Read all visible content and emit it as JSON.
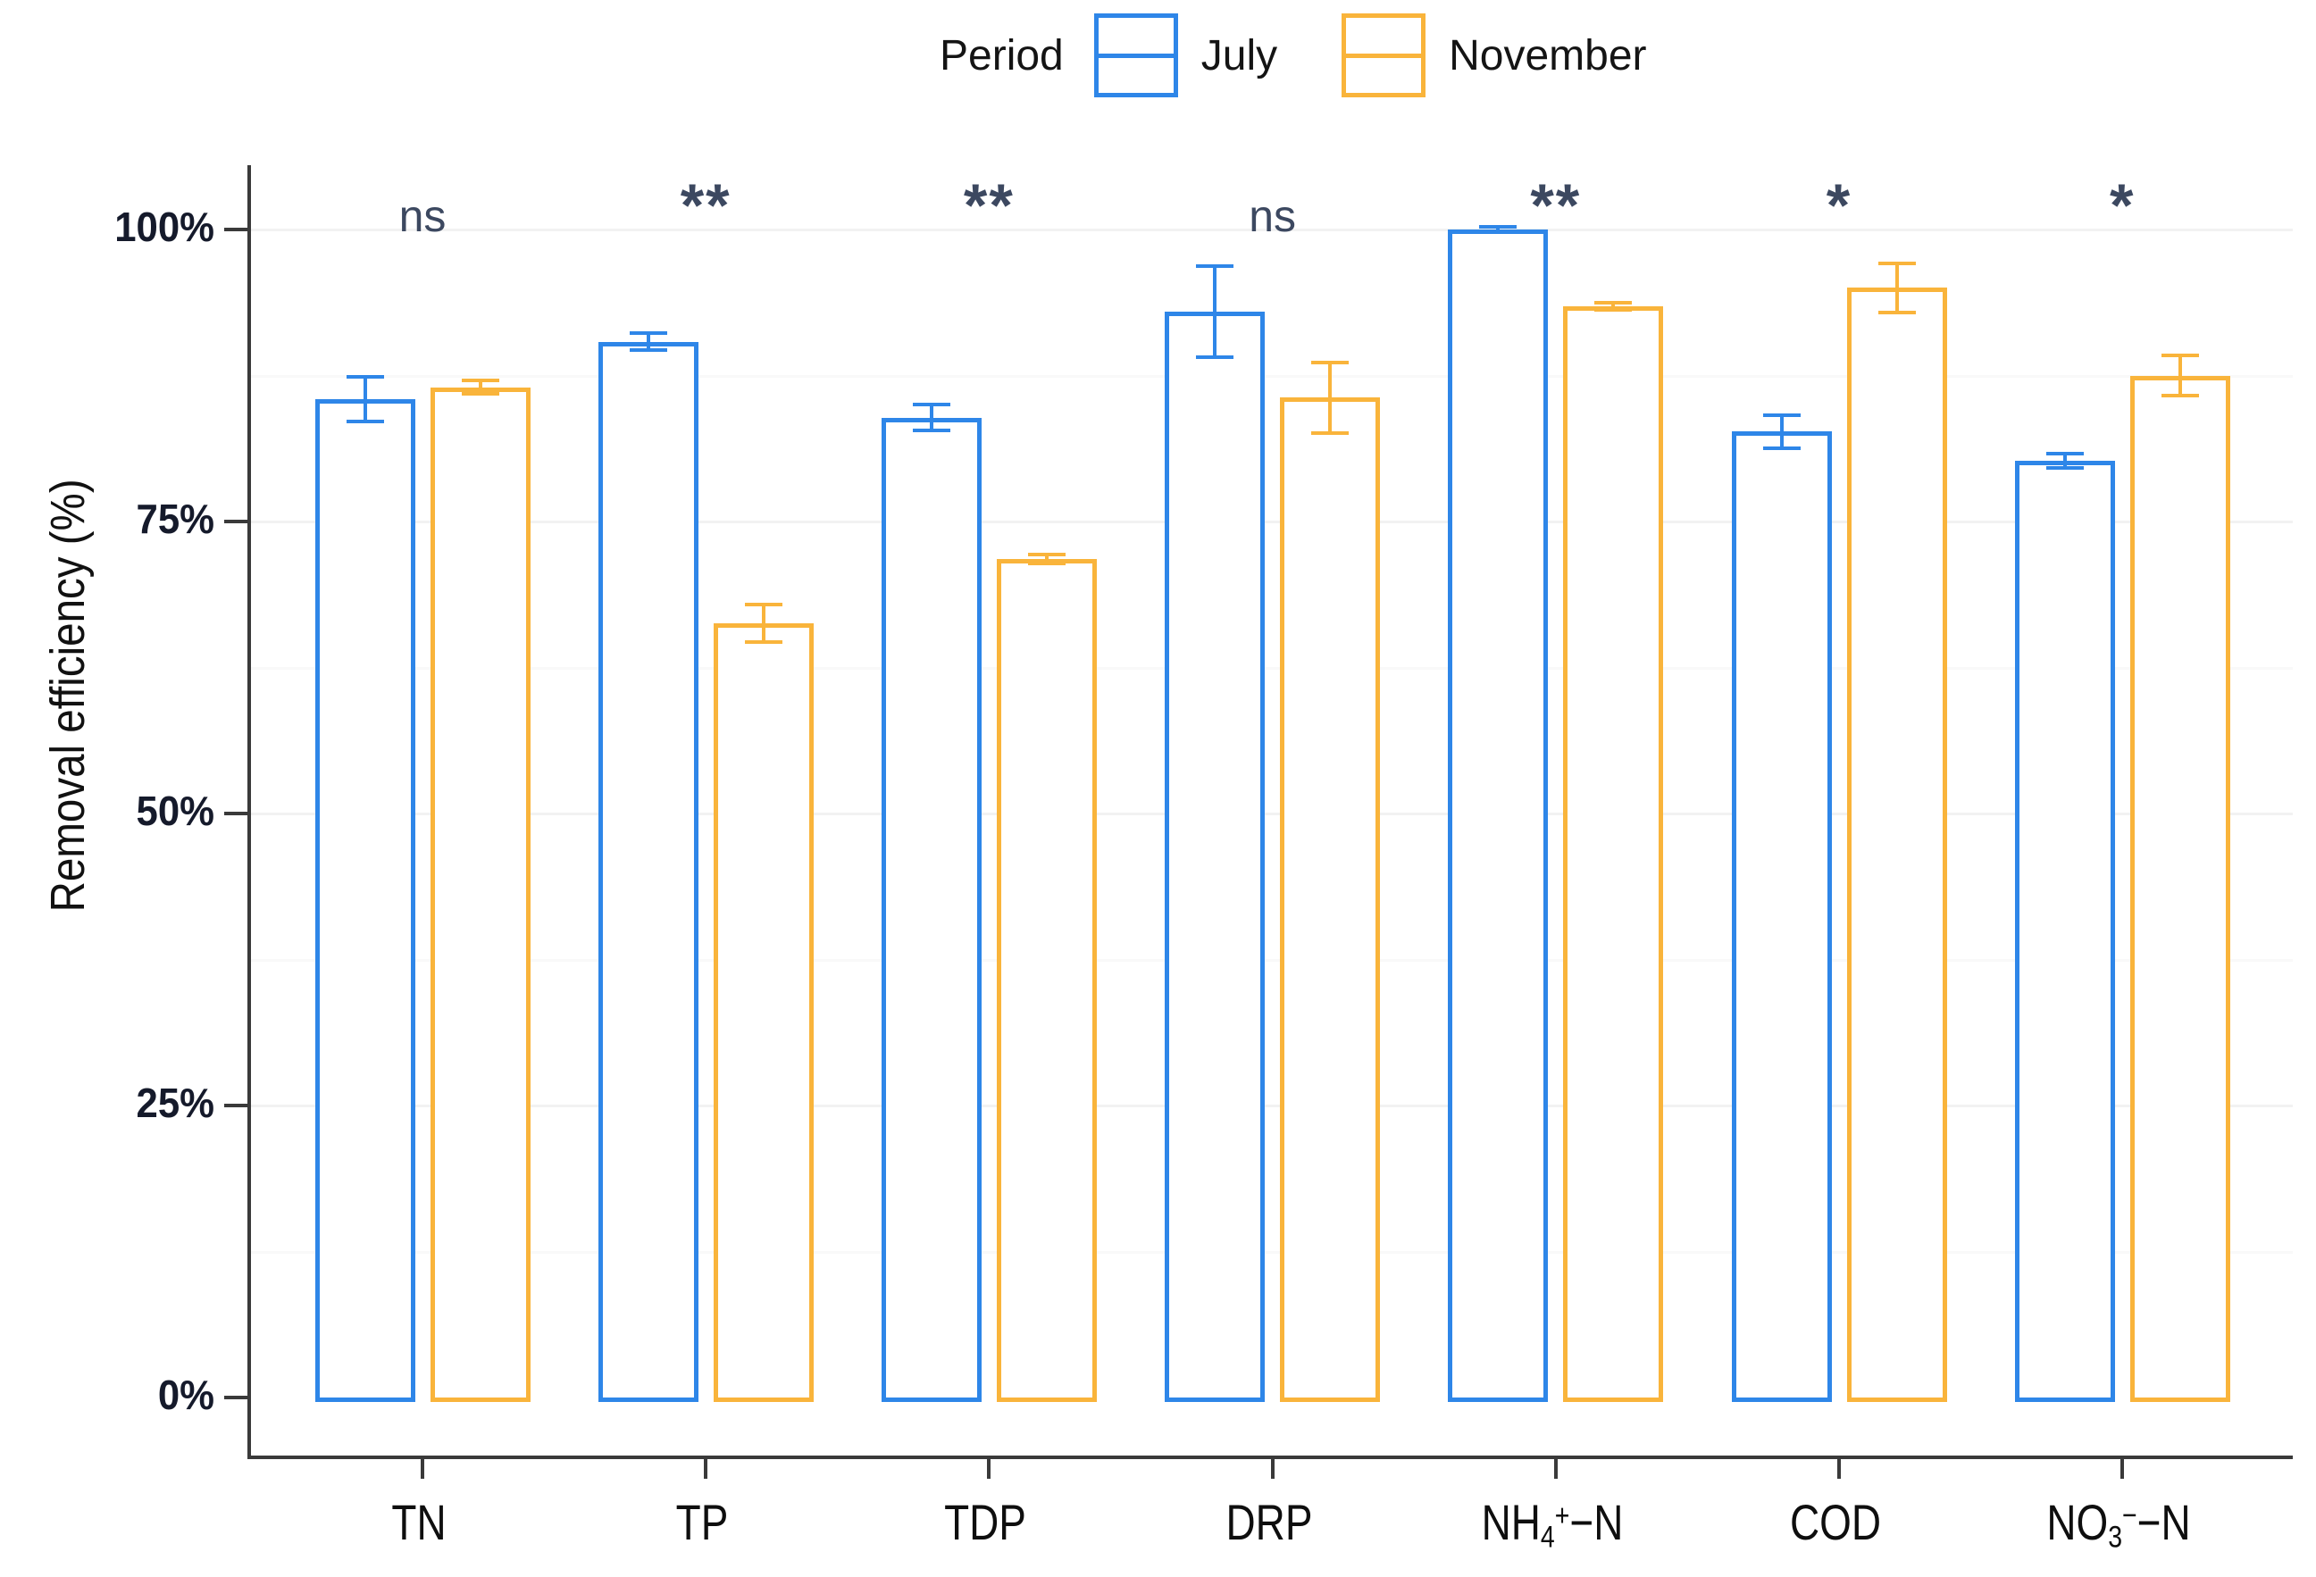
{
  "chart_data": {
    "type": "bar",
    "title": "",
    "xlabel": "",
    "ylabel": "Removal efficiency (%)",
    "ylim": [
      0,
      100
    ],
    "yticks": [
      {
        "value": 0,
        "label": "0%"
      },
      {
        "value": 25,
        "label": "25%"
      },
      {
        "value": 50,
        "label": "50%"
      },
      {
        "value": 75,
        "label": "75%"
      },
      {
        "value": 100,
        "label": "100%"
      }
    ],
    "grid": "very faint horizontal major and minor gridlines, white panel",
    "legend": {
      "position": "top",
      "title": "Period",
      "entries": [
        "July",
        "November"
      ]
    },
    "categories": [
      "TN",
      "TP",
      "TDP",
      "DRP",
      "NH4+-N",
      "COD",
      "NO3--N"
    ],
    "categories_rich": [
      {
        "base": "TN",
        "sub": "",
        "sup": "",
        "tail": ""
      },
      {
        "base": "TP",
        "sub": "",
        "sup": "",
        "tail": ""
      },
      {
        "base": "TDP",
        "sub": "",
        "sup": "",
        "tail": ""
      },
      {
        "base": "DRP",
        "sub": "",
        "sup": "",
        "tail": ""
      },
      {
        "base": "NH",
        "sub": "4",
        "sup": "+",
        "tail": "−N"
      },
      {
        "base": "COD",
        "sub": "",
        "sup": "",
        "tail": ""
      },
      {
        "base": "NO",
        "sub": "3",
        "sup": "−",
        "tail": "−N"
      }
    ],
    "series": [
      {
        "name": "July",
        "color": "#2E86E8",
        "style": "outlined bar, white fill, error bars",
        "values": [
          85.5,
          90.4,
          83.9,
          93.0,
          100.0,
          82.7,
          80.2
        ],
        "errors": [
          1.9,
          0.7,
          1.1,
          3.9,
          0.2,
          1.4,
          0.6
        ]
      },
      {
        "name": "November",
        "color": "#F9B43B",
        "style": "outlined bar, white fill, error bars",
        "values": [
          86.5,
          66.3,
          71.8,
          85.6,
          93.4,
          95.0,
          87.5
        ],
        "errors": [
          0.6,
          1.6,
          0.4,
          3.0,
          0.3,
          2.1,
          1.7
        ]
      }
    ],
    "significance_labels": [
      "ns",
      "**",
      "**",
      "ns",
      "**",
      "*",
      "*"
    ]
  },
  "colors": {
    "axis_line": "#3a3a3a",
    "tick_text": "#151a2b",
    "significance_text": "#3c4860",
    "background": "#ffffff"
  }
}
